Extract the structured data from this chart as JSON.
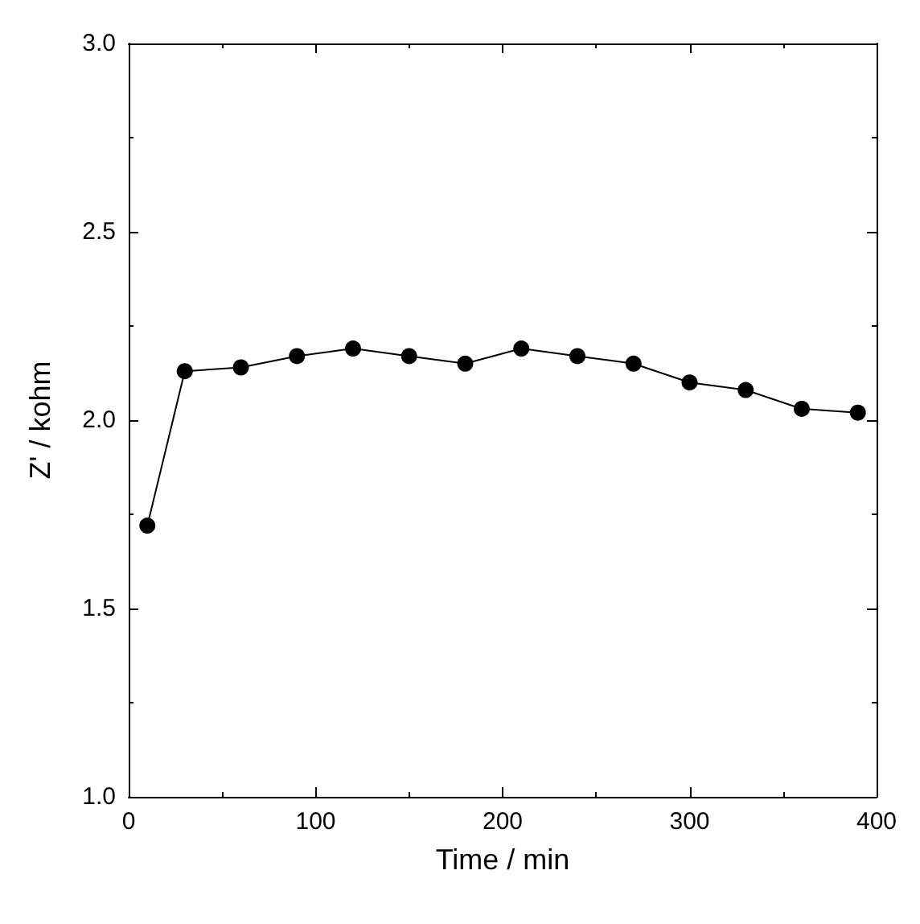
{
  "chart_data": {
    "type": "line",
    "xlabel": "Time / min",
    "ylabel": "Z' / kohm",
    "x": [
      10,
      30,
      60,
      90,
      120,
      150,
      180,
      210,
      240,
      270,
      300,
      330,
      360,
      390
    ],
    "series": [
      {
        "color": "#000000",
        "values": [
          1.72,
          2.13,
          2.14,
          2.17,
          2.19,
          2.17,
          2.15,
          2.19,
          2.17,
          2.15,
          2.1,
          2.08,
          2.03,
          2.02
        ]
      }
    ],
    "xlim": [
      0,
      400
    ],
    "xticks": [
      0,
      100,
      200,
      300,
      400
    ],
    "ylim": [
      1.0,
      3.0
    ],
    "yticks": [
      {
        "value": 1.0,
        "label": "1.0"
      },
      {
        "value": 1.5,
        "label": "1.5"
      },
      {
        "value": 2.0,
        "label": "2.0"
      },
      {
        "value": 2.5,
        "label": "2.5"
      },
      {
        "value": 3.0,
        "label": "3.0"
      }
    ],
    "grid": false,
    "marker": "circle",
    "line_style": "solid"
  }
}
